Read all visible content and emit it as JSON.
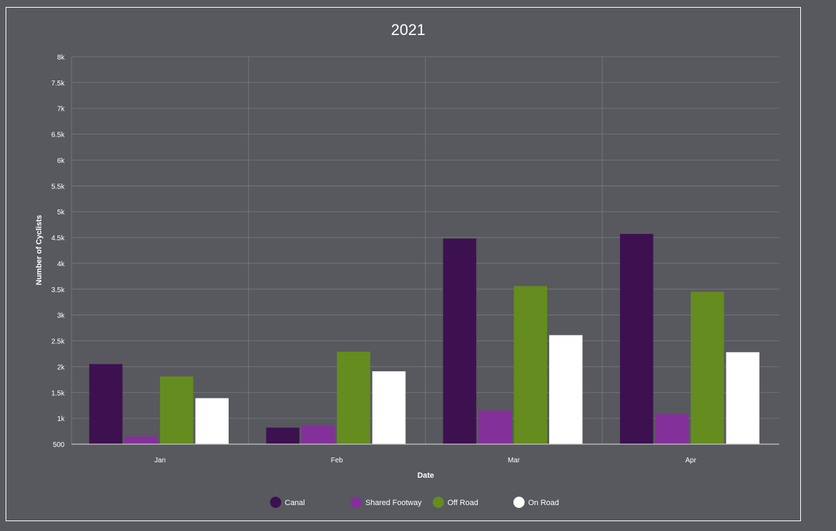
{
  "chart_data": {
    "type": "bar",
    "title": "2021",
    "xlabel": "Date",
    "ylabel": "Number of Cyclists",
    "categories": [
      "Jan",
      "Feb",
      "Mar",
      "Apr"
    ],
    "ylim": [
      500,
      8000
    ],
    "yticks": [
      500,
      1000,
      1500,
      2000,
      2500,
      3000,
      3500,
      4000,
      4500,
      5000,
      5500,
      6000,
      6500,
      7000,
      7500,
      8000
    ],
    "ytick_labels": [
      "500",
      "1k",
      "1.5k",
      "2k",
      "2.5k",
      "3k",
      "3.5k",
      "4k",
      "4.5k",
      "5k",
      "5.5k",
      "6k",
      "6.5k",
      "7k",
      "7.5k",
      "8k"
    ],
    "grid": true,
    "legend_position": "bottom",
    "series": [
      {
        "name": "Canal",
        "color": "#3d1150",
        "values": [
          2050,
          820,
          4480,
          4570
        ]
      },
      {
        "name": "Shared Footway",
        "color": "#84309a",
        "values": [
          650,
          870,
          1150,
          1080
        ]
      },
      {
        "name": "Off Road",
        "color": "#648c1f",
        "values": [
          1810,
          2290,
          3560,
          3450
        ]
      },
      {
        "name": "On Road",
        "color": "#ffffff",
        "values": [
          1390,
          1910,
          2610,
          2280
        ]
      }
    ]
  }
}
